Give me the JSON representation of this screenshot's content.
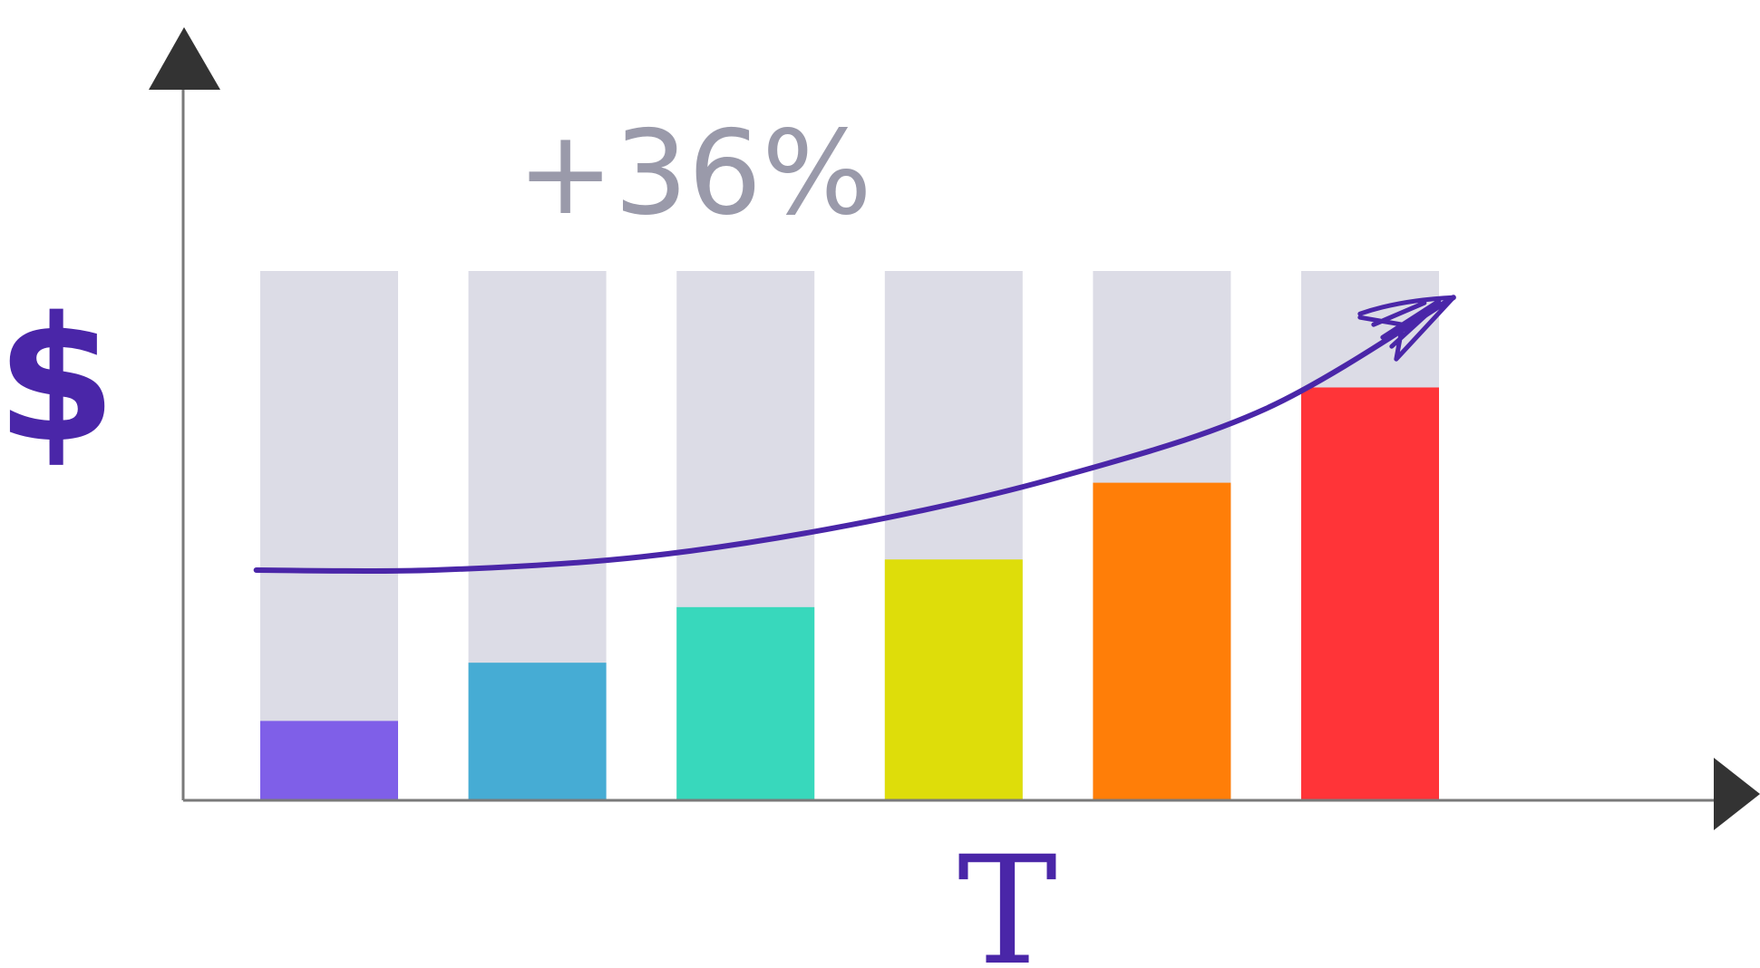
{
  "chart_data": {
    "type": "bar",
    "xlabel": "T",
    "ylabel": "$",
    "annotation": "+36%",
    "ylim": [
      0,
      100
    ],
    "values": [
      15,
      26,
      36.5,
      45.5,
      60,
      78
    ],
    "track_value": 100,
    "grid": false,
    "legend": "none",
    "trend": {
      "x": [
        -0.35,
        0.5,
        1.5,
        2.5,
        3.5,
        4.5,
        5.4
      ],
      "y": [
        43.5,
        43.5,
        46,
        52,
        61,
        74,
        95
      ]
    }
  },
  "colors": {
    "axis": "#7a7a7a",
    "arrow_head": "#333333",
    "track": "#dcdce6",
    "label": "#4a26a8",
    "annotation": "#9a9aaa",
    "trend": "#4a26a8",
    "bars": [
      "#7f5fe8",
      "#46acd4",
      "#38d8bc",
      "#dedd0a",
      "#ff7e08",
      "#ff3438"
    ]
  }
}
